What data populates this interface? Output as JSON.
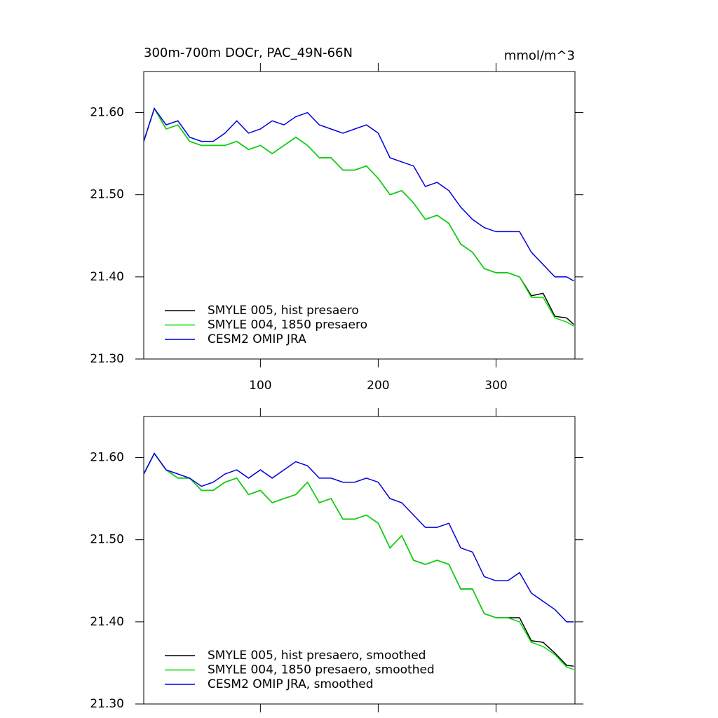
{
  "chart_data": [
    {
      "type": "line",
      "title": "300m-700m DOCr, PAC_49N-66N",
      "subtitle": "mmol/m^3",
      "x": [
        1,
        10,
        20,
        30,
        40,
        50,
        60,
        70,
        80,
        90,
        100,
        110,
        120,
        130,
        140,
        150,
        160,
        170,
        180,
        190,
        200,
        210,
        220,
        230,
        240,
        250,
        260,
        270,
        280,
        290,
        300,
        310,
        320,
        330,
        340,
        350,
        360,
        366
      ],
      "series": [
        {
          "name": "SMYLE 005, hist presaero",
          "color": "#000000",
          "values": [
            21.565,
            21.605,
            21.58,
            21.585,
            21.565,
            21.56,
            21.56,
            21.56,
            21.565,
            21.555,
            21.56,
            21.55,
            21.56,
            21.57,
            21.56,
            21.545,
            21.545,
            21.53,
            21.53,
            21.535,
            21.52,
            21.5,
            21.505,
            21.49,
            21.47,
            21.475,
            21.465,
            21.44,
            21.43,
            21.41,
            21.405,
            21.405,
            21.4,
            21.377,
            21.38,
            21.352,
            21.35,
            21.342
          ]
        },
        {
          "name": "SMYLE 004, 1850 presaero",
          "color": "#00dd00",
          "values": [
            21.565,
            21.605,
            21.58,
            21.585,
            21.565,
            21.56,
            21.56,
            21.56,
            21.565,
            21.555,
            21.56,
            21.55,
            21.56,
            21.57,
            21.56,
            21.545,
            21.545,
            21.53,
            21.53,
            21.535,
            21.52,
            21.5,
            21.505,
            21.49,
            21.47,
            21.475,
            21.465,
            21.44,
            21.43,
            21.41,
            21.405,
            21.405,
            21.4,
            21.375,
            21.375,
            21.35,
            21.345,
            21.34
          ]
        },
        {
          "name": "CESM2 OMIP JRA",
          "color": "#0000dd",
          "values": [
            21.565,
            21.605,
            21.585,
            21.59,
            21.57,
            21.565,
            21.565,
            21.575,
            21.59,
            21.575,
            21.58,
            21.59,
            21.585,
            21.595,
            21.6,
            21.585,
            21.58,
            21.575,
            21.58,
            21.585,
            21.575,
            21.545,
            21.54,
            21.535,
            21.51,
            21.515,
            21.505,
            21.485,
            21.47,
            21.46,
            21.455,
            21.455,
            21.455,
            21.43,
            21.415,
            21.4,
            21.4,
            21.395
          ]
        }
      ],
      "xlim": [
        1,
        367
      ],
      "ylim": [
        21.3,
        21.65
      ],
      "xticks": [
        100,
        200,
        300
      ],
      "yticks": [
        {
          "value": 21.3,
          "label": "21.30"
        },
        {
          "value": 21.4,
          "label": "21.40"
        },
        {
          "value": 21.5,
          "label": "21.50"
        },
        {
          "value": 21.6,
          "label": "21.60"
        }
      ],
      "legend": "lower left"
    },
    {
      "type": "line",
      "x": [
        1,
        10,
        20,
        30,
        40,
        50,
        60,
        70,
        80,
        90,
        100,
        110,
        120,
        130,
        140,
        150,
        160,
        170,
        180,
        190,
        200,
        210,
        220,
        230,
        240,
        250,
        260,
        270,
        280,
        290,
        300,
        310,
        320,
        330,
        340,
        350,
        360,
        366
      ],
      "series": [
        {
          "name": "SMYLE 005, hist presaero, smoothed",
          "color": "#000000",
          "values": [
            21.58,
            21.605,
            21.585,
            21.575,
            21.575,
            21.56,
            21.56,
            21.57,
            21.575,
            21.555,
            21.56,
            21.545,
            21.55,
            21.555,
            21.57,
            21.545,
            21.55,
            21.525,
            21.525,
            21.53,
            21.52,
            21.49,
            21.505,
            21.475,
            21.47,
            21.475,
            21.47,
            21.44,
            21.44,
            21.41,
            21.405,
            21.405,
            21.405,
            21.377,
            21.375,
            21.362,
            21.347,
            21.346
          ]
        },
        {
          "name": "SMYLE 004, 1850 presaero, smoothed",
          "color": "#00dd00",
          "values": [
            21.58,
            21.605,
            21.585,
            21.575,
            21.575,
            21.56,
            21.56,
            21.57,
            21.575,
            21.555,
            21.56,
            21.545,
            21.55,
            21.555,
            21.57,
            21.545,
            21.55,
            21.525,
            21.525,
            21.53,
            21.52,
            21.49,
            21.505,
            21.475,
            21.47,
            21.475,
            21.47,
            21.44,
            21.44,
            21.41,
            21.405,
            21.405,
            21.4,
            21.375,
            21.37,
            21.36,
            21.345,
            21.342
          ]
        },
        {
          "name": "CESM2 OMIP JRA, smoothed",
          "color": "#0000dd",
          "values": [
            21.58,
            21.605,
            21.585,
            21.58,
            21.575,
            21.565,
            21.57,
            21.58,
            21.585,
            21.575,
            21.585,
            21.575,
            21.585,
            21.595,
            21.59,
            21.575,
            21.575,
            21.57,
            21.57,
            21.575,
            21.57,
            21.55,
            21.545,
            21.53,
            21.515,
            21.515,
            21.52,
            21.49,
            21.485,
            21.455,
            21.45,
            21.45,
            21.46,
            21.435,
            21.425,
            21.415,
            21.4,
            21.4
          ]
        }
      ],
      "xlim": [
        1,
        367
      ],
      "ylim": [
        21.3,
        21.65
      ],
      "xticks": [
        100,
        200,
        300
      ],
      "xtick_labels": false,
      "yticks": [
        {
          "value": 21.3,
          "label": "21.30"
        },
        {
          "value": 21.4,
          "label": "21.40"
        },
        {
          "value": 21.5,
          "label": "21.50"
        },
        {
          "value": 21.6,
          "label": "21.60"
        }
      ],
      "legend": "lower left"
    }
  ]
}
